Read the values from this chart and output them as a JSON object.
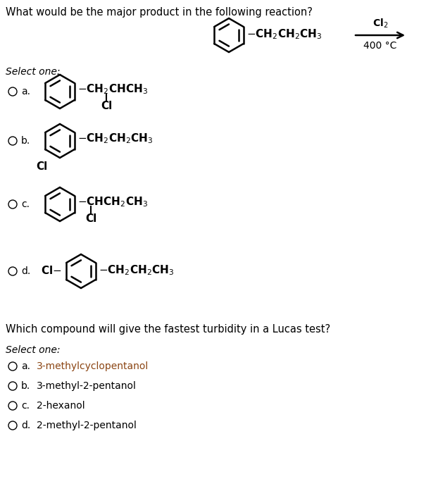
{
  "title": "What would be the major product in the following reaction?",
  "reaction_reagent_top": "Cl$_2$",
  "reaction_reagent_bottom": "400 °C",
  "select_one": "Select one:",
  "q2_title": "Which compound will give the fastest turbidity in a Lucas test?",
  "select_one_2": "Select one:",
  "options_q2": [
    {
      "label": "a.",
      "text": "3-methylcyclopentanol",
      "colored": true
    },
    {
      "label": "b.",
      "text": "3-methyl-2-pentanol",
      "colored": false
    },
    {
      "label": "c.",
      "text": "2-hexanol",
      "colored": false
    },
    {
      "label": "d.",
      "text": "2-methyl-2-pentanol",
      "colored": false
    }
  ],
  "bg_color": "#ffffff",
  "text_color": "#000000",
  "highlight_color": "#8B4513",
  "font_size_title": 10.5,
  "font_size_body": 10,
  "ring_r": 24,
  "lw": 1.8
}
